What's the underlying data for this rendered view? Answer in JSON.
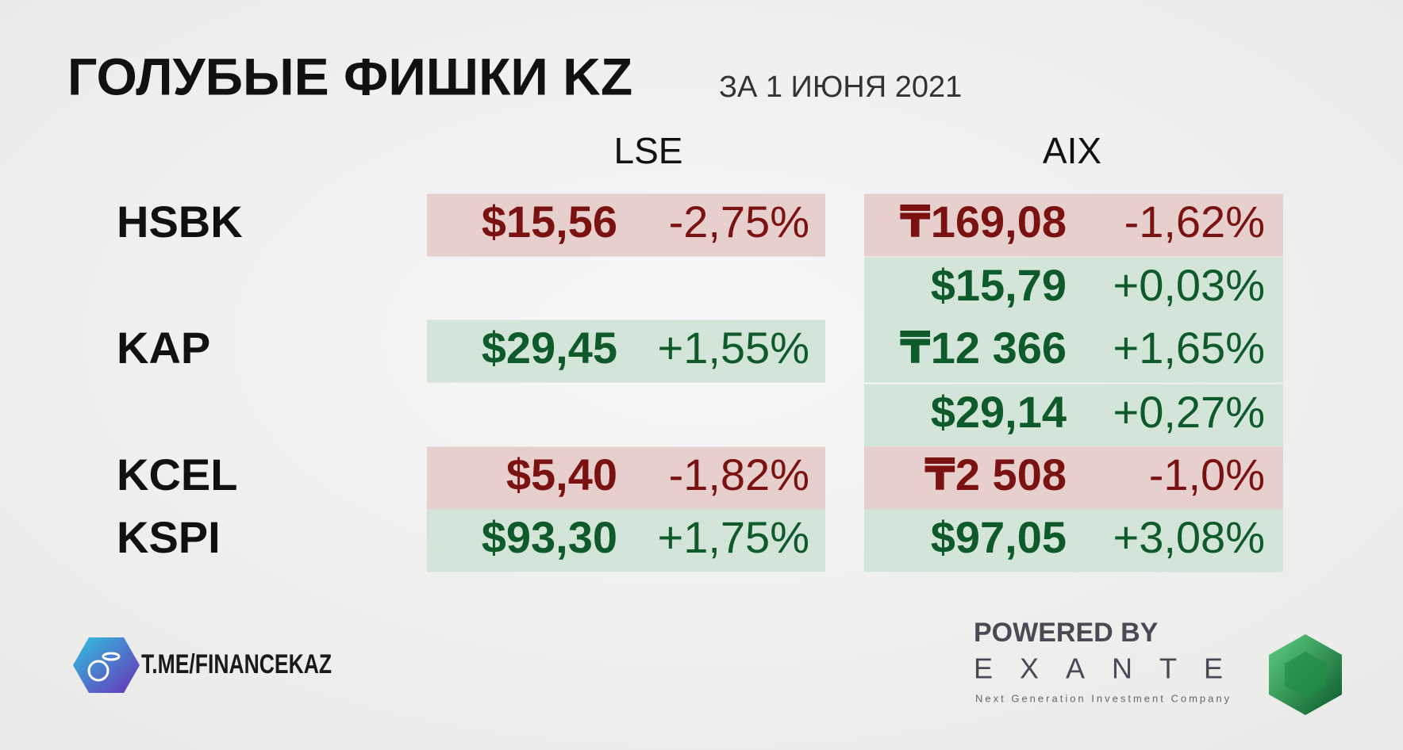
{
  "header": {
    "title": "ГОЛУБЫЕ ФИШКИ KZ",
    "subtitle": "ЗА 1 ИЮНЯ 2021"
  },
  "columns": [
    "LSE",
    "AIX"
  ],
  "rows": [
    {
      "ticker": "HSBK",
      "lse": {
        "price": "$15,56",
        "change": "-2,75%"
      },
      "aix": {
        "price": "₸169,08",
        "change": "-1,62%"
      }
    },
    {
      "ticker": null,
      "lse": null,
      "aix": {
        "price": "$15,79",
        "change": "+0,03%"
      }
    },
    {
      "ticker": "KAP",
      "lse": {
        "price": "$29,45",
        "change": "+1,55%"
      },
      "aix": {
        "price": "₸12 366",
        "change": "+1,65%"
      }
    },
    {
      "ticker": null,
      "lse": null,
      "aix": {
        "price": "$29,14",
        "change": "+0,27%"
      }
    },
    {
      "ticker": "KCEL",
      "lse": {
        "price": "$5,40",
        "change": "-1,82%"
      },
      "aix": {
        "price": "₸2 508",
        "change": "-1,0%"
      }
    },
    {
      "ticker": "KSPI",
      "lse": {
        "price": "$93,30",
        "change": "+1,75%"
      },
      "aix": {
        "price": "$97,05",
        "change": "+3,08%"
      }
    }
  ],
  "footer": {
    "channel": "T.ME/FINANCEKAZ",
    "powered": "POWERED BY",
    "brand": "EXANTE",
    "tagline": "Next Generation Investment Company"
  }
}
